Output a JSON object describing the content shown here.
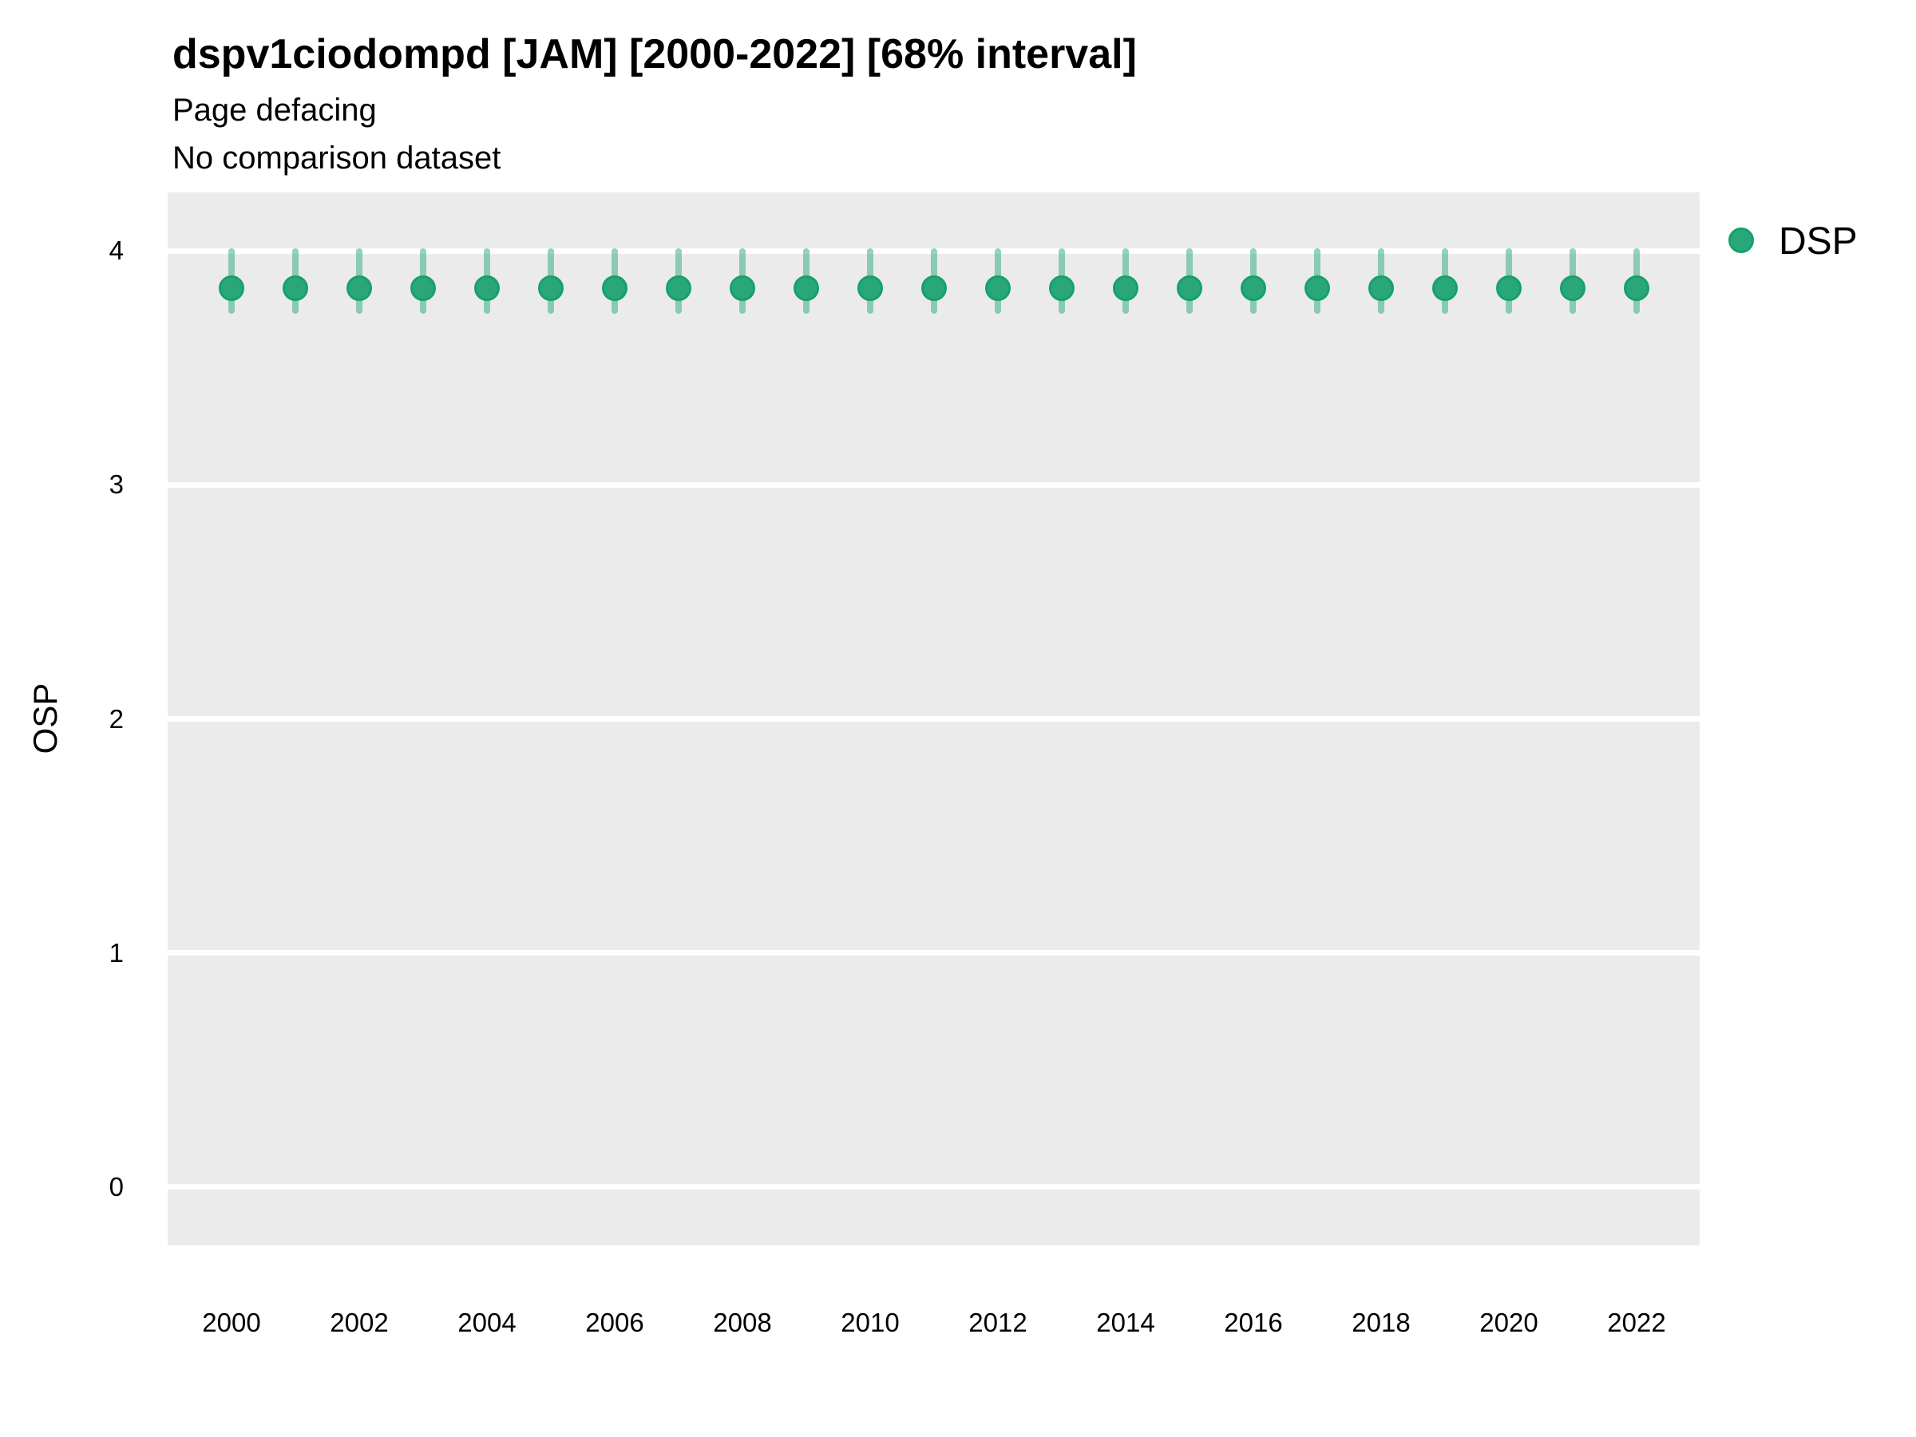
{
  "header": {
    "title": "dspv1ciodompd [JAM] [2000-2022] [68% interval]",
    "subtitle": "Page defacing",
    "comparison_note": "No comparison dataset"
  },
  "legend": {
    "items": [
      {
        "label": "DSP",
        "color": "#2aa77a",
        "border_color": "#17a06c"
      }
    ]
  },
  "chart_data": {
    "type": "scatter",
    "subtype": "pointrange",
    "title": "dspv1ciodompd [JAM] [2000-2022] [68% interval]",
    "subtitle": "Page defacing",
    "note": "No comparison dataset",
    "interval_label": "68% interval",
    "xlabel": "",
    "ylabel": "OSP",
    "x": [
      2000,
      2001,
      2002,
      2003,
      2004,
      2005,
      2006,
      2007,
      2008,
      2009,
      2010,
      2011,
      2012,
      2013,
      2014,
      2015,
      2016,
      2017,
      2018,
      2019,
      2020,
      2021,
      2022
    ],
    "series": [
      {
        "name": "DSP",
        "color": "#2aa77a",
        "border_color": "#17a06c",
        "interval_color": "rgba(42,167,122,0.5)",
        "values": [
          3.84,
          3.84,
          3.84,
          3.84,
          3.84,
          3.84,
          3.84,
          3.84,
          3.84,
          3.84,
          3.84,
          3.84,
          3.84,
          3.84,
          3.84,
          3.84,
          3.84,
          3.84,
          3.84,
          3.84,
          3.84,
          3.84,
          3.84
        ],
        "interval_low": [
          3.73,
          3.73,
          3.73,
          3.73,
          3.73,
          3.73,
          3.73,
          3.73,
          3.73,
          3.73,
          3.73,
          3.73,
          3.73,
          3.73,
          3.73,
          3.73,
          3.73,
          3.73,
          3.73,
          3.73,
          3.73,
          3.73,
          3.73
        ],
        "interval_high": [
          4.01,
          4.01,
          4.01,
          4.01,
          4.01,
          4.01,
          4.01,
          4.01,
          4.01,
          4.01,
          4.01,
          4.01,
          4.01,
          4.01,
          4.01,
          4.01,
          4.01,
          4.01,
          4.01,
          4.01,
          4.01,
          4.01,
          4.01
        ]
      }
    ],
    "xticks": [
      2000,
      2002,
      2004,
      2006,
      2008,
      2010,
      2012,
      2014,
      2016,
      2018,
      2020,
      2022
    ],
    "yticks": [
      0,
      1,
      2,
      3,
      4
    ],
    "ylim": [
      -0.25,
      4.25
    ],
    "grid": "horizontal-white-on-grey",
    "panel_bg": "#ebebeb",
    "gridline_color": "#ffffff",
    "legend_position": "right-top"
  }
}
